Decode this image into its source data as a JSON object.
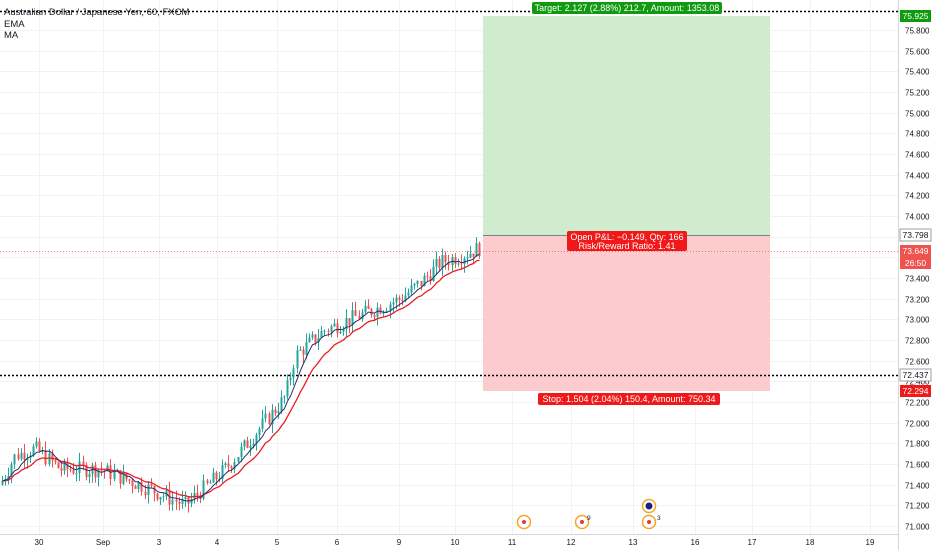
{
  "chart_title": "Australian Dollar / Japanese Yen, 60, FXCM",
  "legend": [
    "EMA",
    "MA"
  ],
  "price_axis": {
    "ticks": [
      "75.800",
      "75.600",
      "75.400",
      "75.200",
      "75.000",
      "74.800",
      "74.600",
      "74.400",
      "74.200",
      "74.000",
      "73.800",
      "73.600",
      "73.400",
      "73.200",
      "73.000",
      "72.800",
      "72.600",
      "72.400",
      "72.200",
      "72.000",
      "71.800",
      "71.600",
      "71.400",
      "71.200",
      "71.000"
    ],
    "tick_values": [
      75.8,
      75.6,
      75.4,
      75.2,
      75.0,
      74.8,
      74.6,
      74.4,
      74.2,
      74.0,
      73.8,
      73.6,
      73.4,
      73.2,
      73.0,
      72.8,
      72.6,
      72.4,
      72.2,
      72.0,
      71.8,
      71.6,
      71.4,
      71.2,
      71.0
    ]
  },
  "time_axis": [
    "30",
    "Sep",
    "3",
    "4",
    "5",
    "6",
    "9",
    "10",
    "11",
    "12",
    "13",
    "16",
    "17",
    "18",
    "19"
  ],
  "markers": {
    "target_price": "75.925",
    "entry_price": "73.798",
    "current_price": "73.649",
    "countdown": "26:50",
    "stop_line_price": "72.437",
    "stop_price": "72.294"
  },
  "labels": {
    "target": "Target: 2.127 (2.88%) 212.7, Amount: 1353.08",
    "open_pnl": "Open P&L: −0.149, Qty: 166",
    "risk_reward": "Risk/Reward Ratio: 1.41",
    "stop": "Stop: 1.504 (2.04%) 150.4, Amount: 750.34"
  },
  "events": [
    "9",
    "3"
  ],
  "colors": {
    "up": "#26a69a",
    "down": "#ef5350",
    "profit_zone": "#cfeccf",
    "loss_zone": "#fccbcd",
    "target_label": "#109a10",
    "stop_label": "#f01818",
    "ema": "#e91e24",
    "ma": "#2b2b6b"
  },
  "chart_data": {
    "type": "candlestick",
    "title": "Australian Dollar / Japanese Yen, 60, FXCM",
    "ylim": [
      70.95,
      75.95
    ],
    "price_points": [
      [
        "30",
        71.4
      ],
      [
        "30",
        71.7
      ],
      [
        "30",
        71.75
      ],
      [
        "Sep",
        71.55
      ],
      [
        "Sep",
        71.55
      ],
      [
        "3",
        71.35
      ],
      [
        "3",
        71.2
      ],
      [
        "4",
        71.5
      ],
      [
        "4",
        71.9
      ],
      [
        "4",
        72.1
      ],
      [
        "5",
        72.3
      ],
      [
        "5",
        72.8
      ],
      [
        "5",
        72.9
      ],
      [
        "6",
        73.0
      ],
      [
        "6",
        73.05
      ],
      [
        "9",
        73.2
      ],
      [
        "9",
        73.3
      ],
      [
        "10",
        73.55
      ],
      [
        "10",
        73.7
      ]
    ]
  }
}
